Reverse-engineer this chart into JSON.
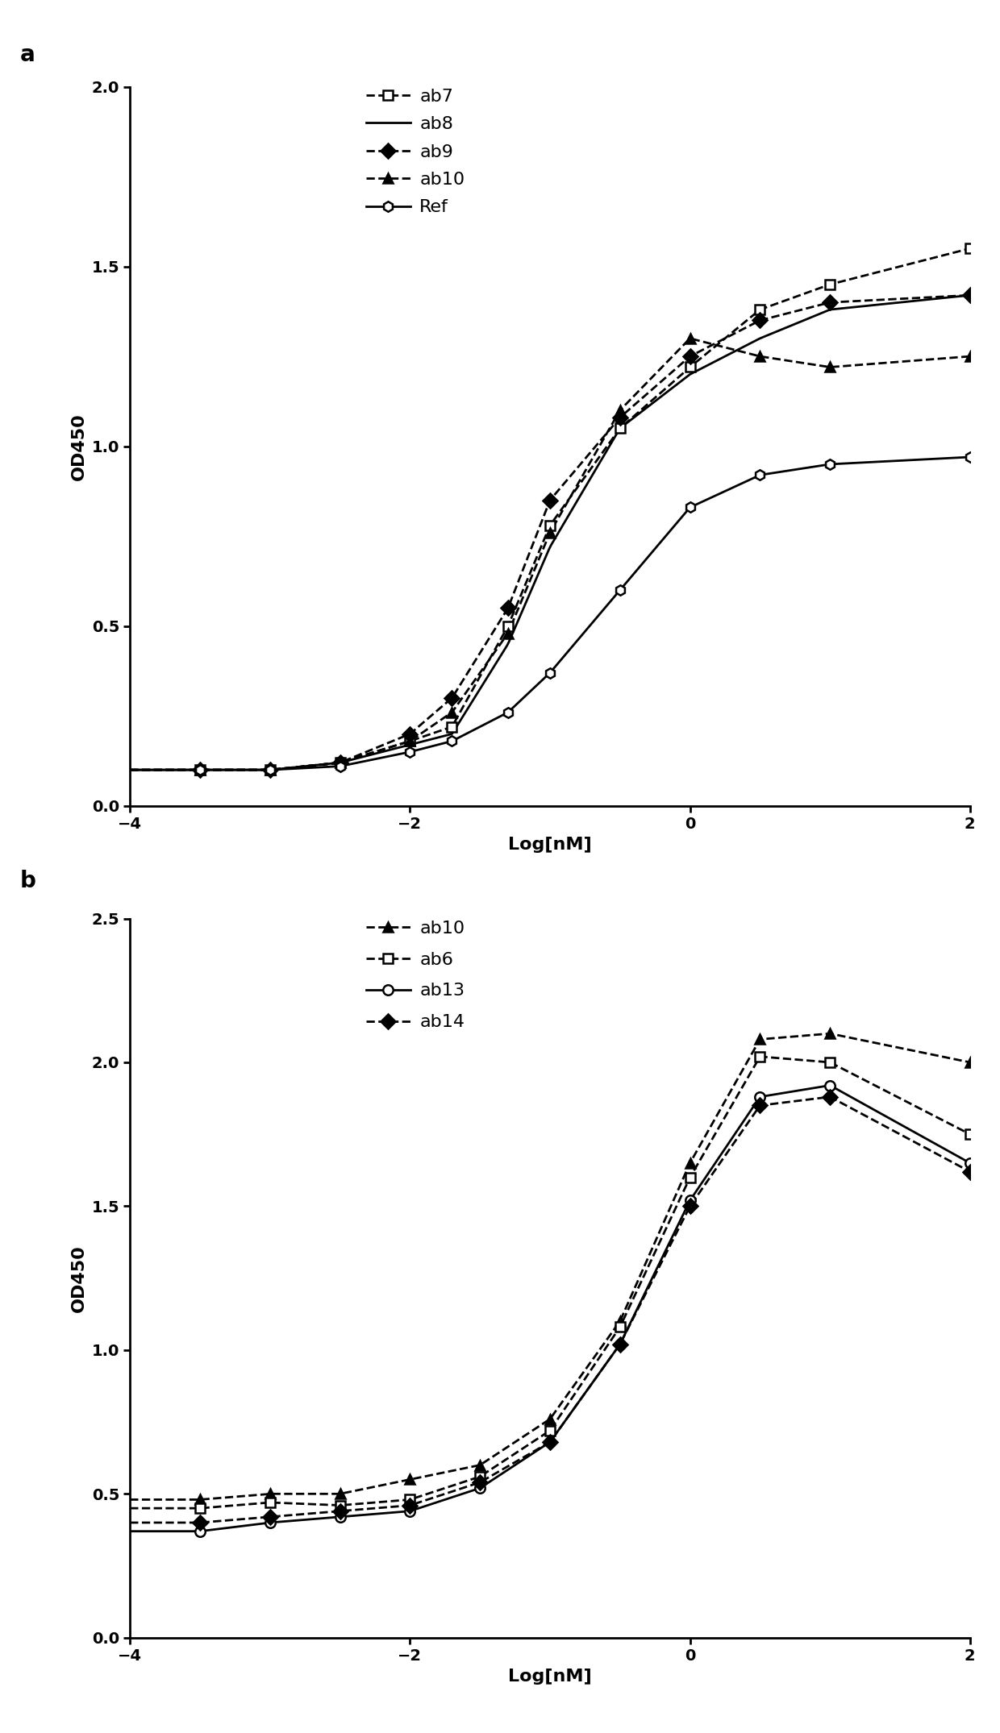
{
  "panel_a": {
    "ylabel": "OD450",
    "xlabel": "Log[nM]",
    "xlim": [
      -4,
      2
    ],
    "ylim": [
      0.0,
      2.0
    ],
    "yticks": [
      0.0,
      0.5,
      1.0,
      1.5,
      2.0
    ],
    "xticks": [
      -4,
      -2,
      0,
      2
    ],
    "series": [
      {
        "label": "ab7",
        "marker": "s",
        "fillstyle": "none",
        "linestyle": "--",
        "x_data": [
          -3.5,
          -3.0,
          -2.5,
          -2.0,
          -1.7,
          -1.3,
          -1.0,
          -0.5,
          0.0,
          0.5,
          1.0,
          2.0
        ],
        "y_data": [
          0.1,
          0.1,
          0.12,
          0.18,
          0.22,
          0.5,
          0.78,
          1.05,
          1.22,
          1.38,
          1.45,
          1.55
        ]
      },
      {
        "label": "ab8",
        "marker": null,
        "fillstyle": "full",
        "linestyle": "-",
        "x_data": [
          -3.5,
          -3.0,
          -2.5,
          -2.0,
          -1.7,
          -1.3,
          -1.0,
          -0.5,
          0.0,
          0.5,
          1.0,
          2.0
        ],
        "y_data": [
          0.1,
          0.1,
          0.12,
          0.17,
          0.2,
          0.45,
          0.72,
          1.05,
          1.2,
          1.3,
          1.38,
          1.42
        ]
      },
      {
        "label": "ab9",
        "marker": "D",
        "fillstyle": "full",
        "linestyle": "--",
        "x_data": [
          -3.5,
          -3.0,
          -2.5,
          -2.0,
          -1.7,
          -1.3,
          -1.0,
          -0.5,
          0.0,
          0.5,
          1.0,
          2.0
        ],
        "y_data": [
          0.1,
          0.1,
          0.12,
          0.2,
          0.3,
          0.55,
          0.85,
          1.08,
          1.25,
          1.35,
          1.4,
          1.42
        ]
      },
      {
        "label": "ab10",
        "marker": "^",
        "fillstyle": "full",
        "linestyle": "--",
        "x_data": [
          -3.5,
          -3.0,
          -2.5,
          -2.0,
          -1.7,
          -1.3,
          -1.0,
          -0.5,
          0.0,
          0.5,
          1.0,
          2.0
        ],
        "y_data": [
          0.1,
          0.1,
          0.12,
          0.18,
          0.26,
          0.48,
          0.76,
          1.1,
          1.3,
          1.25,
          1.22,
          1.25
        ]
      },
      {
        "label": "Ref",
        "marker": "h",
        "fillstyle": "none",
        "linestyle": "-",
        "x_data": [
          -3.5,
          -3.0,
          -2.5,
          -2.0,
          -1.7,
          -1.3,
          -1.0,
          -0.5,
          0.0,
          0.5,
          1.0,
          2.0
        ],
        "y_data": [
          0.1,
          0.1,
          0.11,
          0.15,
          0.18,
          0.26,
          0.37,
          0.6,
          0.83,
          0.92,
          0.95,
          0.97
        ]
      }
    ],
    "legend": [
      {
        "label": "ab7",
        "marker": "s",
        "fillstyle": "none",
        "linestyle": "--"
      },
      {
        "label": "ab8",
        "marker": null,
        "fillstyle": "full",
        "linestyle": "-"
      },
      {
        "label": "ab9",
        "marker": "D",
        "fillstyle": "full",
        "linestyle": "--"
      },
      {
        "label": "ab10",
        "marker": "^",
        "fillstyle": "full",
        "linestyle": "--"
      },
      {
        "label": "Ref",
        "marker": "h",
        "fillstyle": "none",
        "linestyle": "-"
      }
    ]
  },
  "panel_b": {
    "ylabel": "OD450",
    "xlabel": "Log[nM]",
    "xlim": [
      -4,
      2
    ],
    "ylim": [
      0.0,
      2.5
    ],
    "yticks": [
      0.0,
      0.5,
      1.0,
      1.5,
      2.0,
      2.5
    ],
    "xticks": [
      -4,
      -2,
      0,
      2
    ],
    "series": [
      {
        "label": "ab10",
        "marker": "^",
        "fillstyle": "full",
        "linestyle": "--",
        "x_data": [
          -3.5,
          -3.0,
          -2.5,
          -2.0,
          -1.5,
          -1.0,
          -0.5,
          0.0,
          0.5,
          1.0,
          2.0
        ],
        "y_data": [
          0.48,
          0.5,
          0.5,
          0.55,
          0.6,
          0.76,
          1.1,
          1.65,
          2.08,
          2.1,
          2.0
        ]
      },
      {
        "label": "ab6",
        "marker": "s",
        "fillstyle": "none",
        "linestyle": "--",
        "x_data": [
          -3.5,
          -3.0,
          -2.5,
          -2.0,
          -1.5,
          -1.0,
          -0.5,
          0.0,
          0.5,
          1.0,
          2.0
        ],
        "y_data": [
          0.45,
          0.47,
          0.46,
          0.48,
          0.56,
          0.72,
          1.08,
          1.6,
          2.02,
          2.0,
          1.75
        ]
      },
      {
        "label": "ab13",
        "marker": "o",
        "fillstyle": "none",
        "linestyle": "-",
        "x_data": [
          -3.5,
          -3.0,
          -2.5,
          -2.0,
          -1.5,
          -1.0,
          -0.5,
          0.0,
          0.5,
          1.0,
          2.0
        ],
        "y_data": [
          0.37,
          0.4,
          0.42,
          0.44,
          0.52,
          0.68,
          1.02,
          1.52,
          1.88,
          1.92,
          1.65
        ]
      },
      {
        "label": "ab14",
        "marker": "D",
        "fillstyle": "full",
        "linestyle": "--",
        "x_data": [
          -3.5,
          -3.0,
          -2.5,
          -2.0,
          -1.5,
          -1.0,
          -0.5,
          0.0,
          0.5,
          1.0,
          2.0
        ],
        "y_data": [
          0.4,
          0.42,
          0.44,
          0.46,
          0.54,
          0.68,
          1.02,
          1.5,
          1.85,
          1.88,
          1.62
        ]
      }
    ],
    "legend": [
      {
        "label": "ab10",
        "marker": "^",
        "fillstyle": "full",
        "linestyle": "--"
      },
      {
        "label": "ab6",
        "marker": "s",
        "fillstyle": "none",
        "linestyle": "--"
      },
      {
        "label": "ab13",
        "marker": "o",
        "fillstyle": "none",
        "linestyle": "-"
      },
      {
        "label": "ab14",
        "marker": "D",
        "fillstyle": "full",
        "linestyle": "--"
      }
    ]
  },
  "fig_width": 12.4,
  "fig_height": 21.5,
  "dpi": 100,
  "marker_size": 9,
  "line_width": 2.0,
  "tick_fontsize": 14,
  "label_fontsize": 16,
  "legend_fontsize": 16,
  "spine_linewidth": 2.0
}
